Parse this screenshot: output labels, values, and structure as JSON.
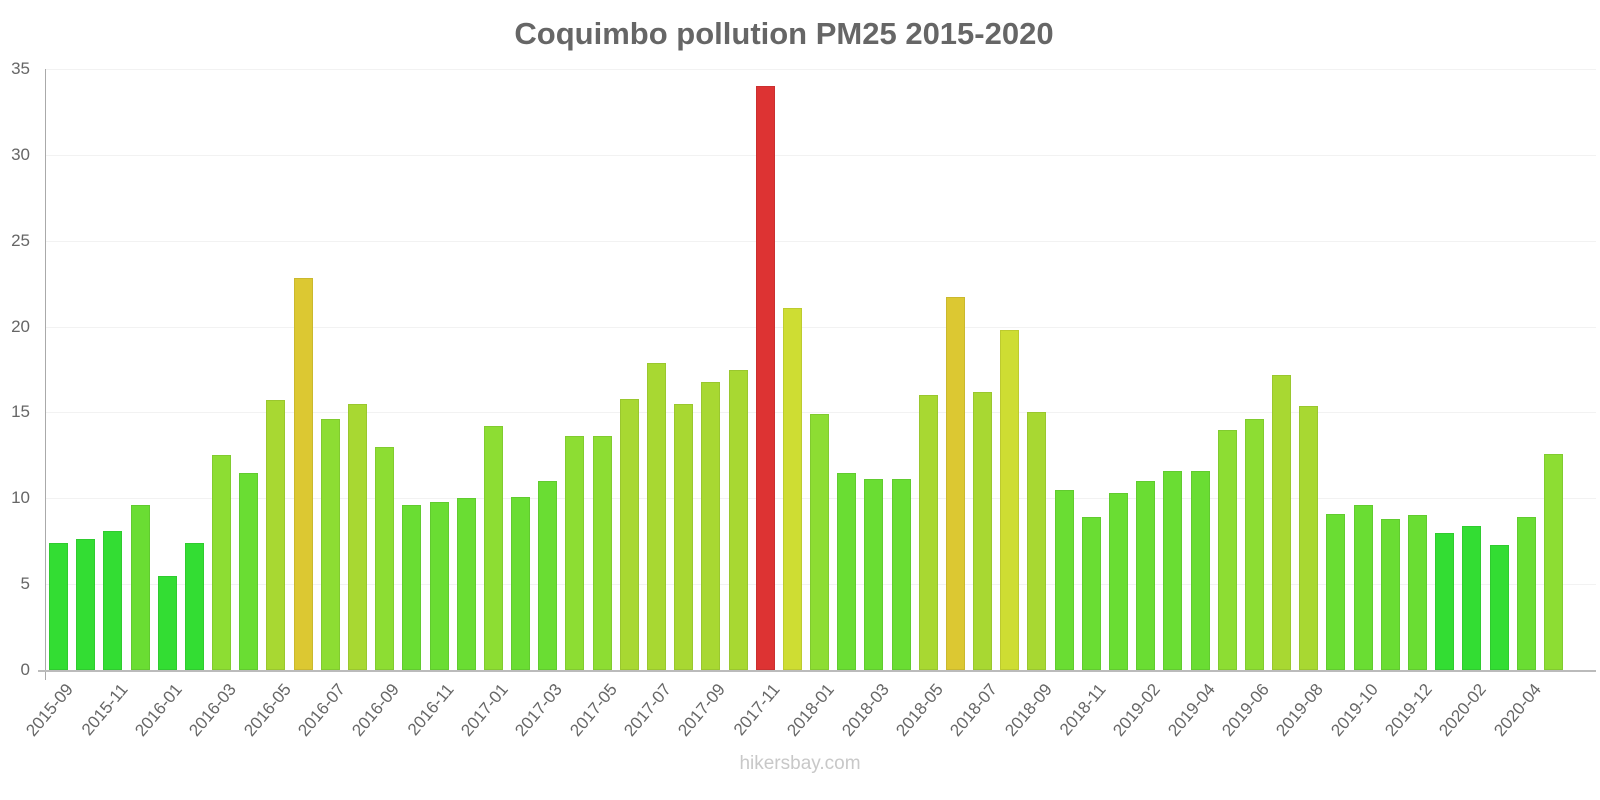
{
  "chart_data": {
    "type": "bar",
    "title": "Coquimbo pollution PM25 2015-2020",
    "xlabel": "",
    "ylabel": "",
    "ylim": [
      0,
      35
    ],
    "yticks": [
      0,
      5,
      10,
      15,
      20,
      25,
      30,
      35
    ],
    "grid": true,
    "legend": null,
    "categories": [
      "2015-09",
      "2015-10",
      "2015-11",
      "2015-12",
      "2016-01",
      "2016-02",
      "2016-03",
      "2016-04",
      "2016-05",
      "2016-06",
      "2016-07",
      "2016-08",
      "2016-09",
      "2016-10",
      "2016-11",
      "2016-12",
      "2017-01",
      "2017-02",
      "2017-03",
      "2017-04",
      "2017-05",
      "2017-06",
      "2017-07",
      "2017-08",
      "2017-09",
      "2017-10",
      "2017-11",
      "2017-12",
      "2018-01",
      "2018-02",
      "2018-03",
      "2018-04",
      "2018-05",
      "2018-06",
      "2018-07",
      "2018-08",
      "2018-09",
      "2018-10",
      "2018-11",
      "2019-01",
      "2019-02",
      "2019-03",
      "2019-04",
      "2019-05",
      "2019-06",
      "2019-07",
      "2019-08",
      "2019-09",
      "2019-10",
      "2019-11",
      "2019-12",
      "2020-01",
      "2020-02",
      "2020-03",
      "2020-04",
      "2020-05"
    ],
    "xtick_labels": [
      "2015-09",
      "2015-11",
      "2016-01",
      "2016-03",
      "2016-05",
      "2016-07",
      "2016-09",
      "2016-11",
      "2017-01",
      "2017-03",
      "2017-05",
      "2017-07",
      "2017-09",
      "2017-11",
      "2018-01",
      "2018-03",
      "2018-05",
      "2018-07",
      "2018-09",
      "2018-11",
      "2019-02",
      "2019-04",
      "2019-06",
      "2019-08",
      "2019-10",
      "2019-12",
      "2020-02",
      "2020-04"
    ],
    "values": [
      7.4,
      7.6,
      8.1,
      9.6,
      5.5,
      7.4,
      12.5,
      11.5,
      15.7,
      22.8,
      14.6,
      15.5,
      13.0,
      9.6,
      9.8,
      10.0,
      14.2,
      10.1,
      11.0,
      13.6,
      13.6,
      15.8,
      17.9,
      15.5,
      16.8,
      17.5,
      34.0,
      21.1,
      14.9,
      11.5,
      11.1,
      11.1,
      16.0,
      21.7,
      16.2,
      19.8,
      15.0,
      10.5,
      8.9,
      10.3,
      11.0,
      11.6,
      11.6,
      14.0,
      14.6,
      17.2,
      15.4,
      9.1,
      9.6,
      8.8,
      9.0,
      8.0,
      8.4,
      7.3,
      8.9,
      12.6
    ],
    "color_scale": {
      "low": "#33dd33",
      "mid_low": "#6add33",
      "mid": "#a8d832",
      "high": "#dcc832",
      "very_high": "#dd3333"
    }
  },
  "watermark": "hikersbay.com"
}
